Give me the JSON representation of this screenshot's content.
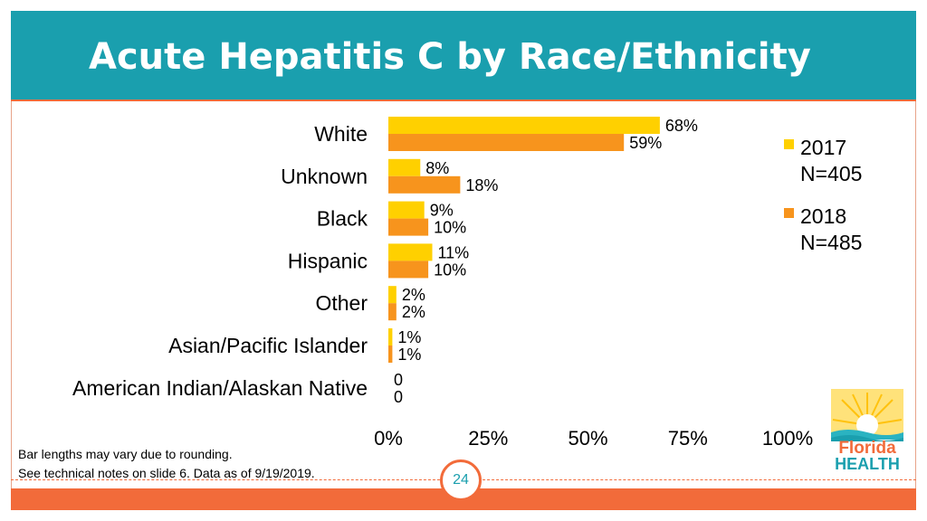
{
  "slide": {
    "title": "Acute Hepatitis C by Race/Ethnicity",
    "footnotes": [
      "Bar lengths may vary due to rounding.",
      "See technical notes on slide 6. Data as of 9/19/2019."
    ],
    "page_number": "24",
    "logo_text": [
      "Florida",
      "HEALTH"
    ]
  },
  "colors": {
    "header": "#1a9fae",
    "accent": "#f26b3a",
    "series_2017": "#ffd000",
    "series_2018": "#f7941d"
  },
  "chart_data": {
    "type": "bar",
    "orientation": "horizontal",
    "categories": [
      "White",
      "Unknown",
      "Black",
      "Hispanic",
      "Other",
      "Asian/Pacific Islander",
      "American Indian/Alaskan Native"
    ],
    "series": [
      {
        "name": "2017",
        "legend_lines": [
          "2017",
          "N=405"
        ],
        "values": [
          68,
          8,
          9,
          11,
          2,
          1,
          0
        ],
        "labels": [
          "68%",
          "8%",
          "9%",
          "11%",
          "2%",
          "1%",
          "0"
        ]
      },
      {
        "name": "2018",
        "legend_lines": [
          "2018",
          "N=485"
        ],
        "values": [
          59,
          18,
          10,
          10,
          2,
          1,
          0
        ],
        "labels": [
          "59%",
          "18%",
          "10%",
          "10%",
          "2%",
          "1%",
          "0"
        ]
      }
    ],
    "xlim": [
      0,
      100
    ],
    "xticks": [
      0,
      25,
      50,
      75,
      100
    ],
    "xtick_labels": [
      "0%",
      "25%",
      "50%",
      "75%",
      "100%"
    ],
    "grid": false,
    "legend_position": "right"
  }
}
